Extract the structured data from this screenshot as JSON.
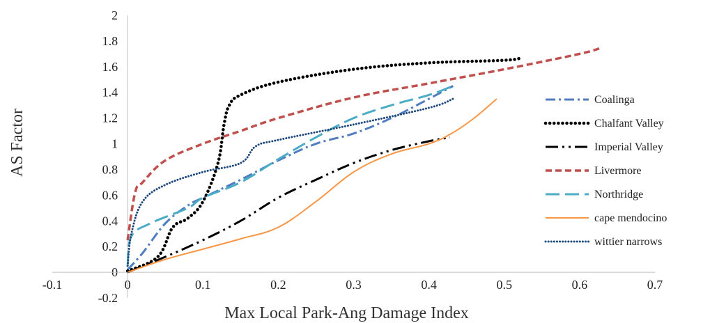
{
  "chart_data": {
    "type": "line",
    "title": "",
    "xlabel": "Max Local Park-Ang Damage Index",
    "ylabel": "AS Factor",
    "xlim": [
      -0.1,
      0.7
    ],
    "ylim": [
      -0.2,
      2
    ],
    "x_ticks": [
      "-0.1",
      "0",
      "0.1",
      "0.2",
      "0.3",
      "0.4",
      "0.5",
      "0.6",
      "0.7"
    ],
    "y_ticks": [
      "-0.2",
      "0",
      "0.2",
      "0.4",
      "0.6",
      "0.8",
      "1",
      "1.2",
      "1.4",
      "1.6",
      "1.8",
      "2"
    ],
    "grid": false,
    "legend_position": "right",
    "series": [
      {
        "name": "Coalinga",
        "color": "#4F7DBF",
        "dash": "dash-dot",
        "points": [
          [
            0,
            0.02
          ],
          [
            0.02,
            0.15
          ],
          [
            0.05,
            0.38
          ],
          [
            0.08,
            0.52
          ],
          [
            0.1,
            0.58
          ],
          [
            0.15,
            0.72
          ],
          [
            0.2,
            0.87
          ],
          [
            0.25,
            1.0
          ],
          [
            0.3,
            1.08
          ],
          [
            0.35,
            1.2
          ],
          [
            0.4,
            1.35
          ],
          [
            0.432,
            1.45
          ]
        ]
      },
      {
        "name": "Chalfant Valley",
        "color": "#000000",
        "dash": "dotted",
        "points": [
          [
            0,
            0.01
          ],
          [
            0.04,
            0.12
          ],
          [
            0.06,
            0.35
          ],
          [
            0.08,
            0.42
          ],
          [
            0.1,
            0.55
          ],
          [
            0.12,
            0.85
          ],
          [
            0.128,
            1.15
          ],
          [
            0.135,
            1.3
          ],
          [
            0.15,
            1.38
          ],
          [
            0.2,
            1.48
          ],
          [
            0.3,
            1.58
          ],
          [
            0.4,
            1.63
          ],
          [
            0.5,
            1.65
          ],
          [
            0.523,
            1.67
          ]
        ]
      },
      {
        "name": "Imperial Valley",
        "color": "#000000",
        "dash": "long-dash-dot-dot",
        "points": [
          [
            0,
            0.0
          ],
          [
            0.05,
            0.12
          ],
          [
            0.1,
            0.25
          ],
          [
            0.15,
            0.4
          ],
          [
            0.2,
            0.58
          ],
          [
            0.25,
            0.72
          ],
          [
            0.3,
            0.85
          ],
          [
            0.35,
            0.95
          ],
          [
            0.4,
            1.02
          ],
          [
            0.428,
            1.05
          ]
        ]
      },
      {
        "name": "Livermore",
        "color": "#C0504D",
        "dash": "dashed",
        "points": [
          [
            0,
            0.25
          ],
          [
            0.01,
            0.62
          ],
          [
            0.02,
            0.7
          ],
          [
            0.05,
            0.87
          ],
          [
            0.1,
            1.0
          ],
          [
            0.15,
            1.1
          ],
          [
            0.2,
            1.2
          ],
          [
            0.3,
            1.36
          ],
          [
            0.4,
            1.47
          ],
          [
            0.5,
            1.58
          ],
          [
            0.6,
            1.7
          ],
          [
            0.63,
            1.75
          ]
        ]
      },
      {
        "name": "Northridge",
        "color": "#4BACC6",
        "dash": "long-dash",
        "points": [
          [
            0,
            0.05
          ],
          [
            0.005,
            0.28
          ],
          [
            0.03,
            0.38
          ],
          [
            0.08,
            0.5
          ],
          [
            0.1,
            0.58
          ],
          [
            0.15,
            0.7
          ],
          [
            0.2,
            0.88
          ],
          [
            0.25,
            1.05
          ],
          [
            0.3,
            1.2
          ],
          [
            0.35,
            1.3
          ],
          [
            0.4,
            1.38
          ],
          [
            0.432,
            1.45
          ]
        ]
      },
      {
        "name": "cape mendocino",
        "color": "#F79646",
        "dash": "solid",
        "points": [
          [
            0,
            0.0
          ],
          [
            0.05,
            0.1
          ],
          [
            0.1,
            0.18
          ],
          [
            0.15,
            0.26
          ],
          [
            0.2,
            0.35
          ],
          [
            0.25,
            0.55
          ],
          [
            0.3,
            0.78
          ],
          [
            0.35,
            0.92
          ],
          [
            0.4,
            1.0
          ],
          [
            0.43,
            1.08
          ],
          [
            0.46,
            1.2
          ],
          [
            0.49,
            1.35
          ]
        ]
      },
      {
        "name": "wittier narrows",
        "color": "#1F497D",
        "dash": "dense-dot",
        "points": [
          [
            0,
            0.05
          ],
          [
            0.005,
            0.3
          ],
          [
            0.02,
            0.55
          ],
          [
            0.05,
            0.68
          ],
          [
            0.1,
            0.78
          ],
          [
            0.15,
            0.85
          ],
          [
            0.17,
            0.98
          ],
          [
            0.2,
            1.03
          ],
          [
            0.3,
            1.15
          ],
          [
            0.4,
            1.28
          ],
          [
            0.432,
            1.35
          ]
        ]
      }
    ]
  }
}
